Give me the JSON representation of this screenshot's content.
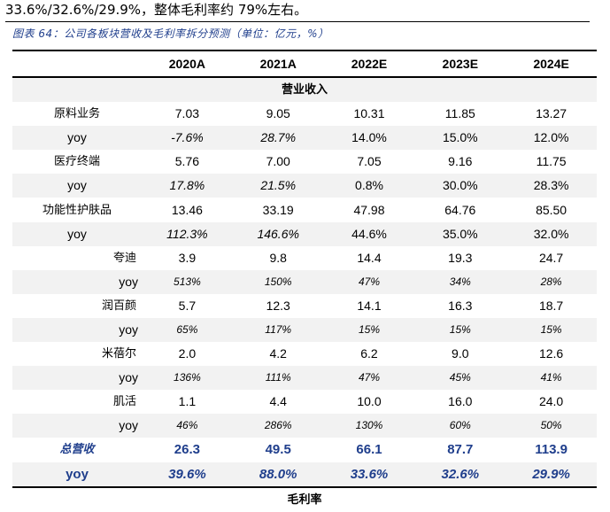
{
  "intro_text": "33.6%/32.6%/29.9%，整体毛利率约 79%左右。",
  "caption": "图表 64：公司各板块营收及毛利率拆分预测（单位：亿元，%）",
  "columns": [
    "",
    "2020A",
    "2021A",
    "2022E",
    "2023E",
    "2024E"
  ],
  "sections": {
    "revenue": "营业收入",
    "gross_margin": "毛利率"
  },
  "rows": [
    {
      "label": "原料业务",
      "values": [
        "7.03",
        "9.05",
        "10.31",
        "11.85",
        "13.27"
      ]
    },
    {
      "label": "yoy",
      "values": [
        "-7.6%",
        "28.7%",
        "14.0%",
        "15.0%",
        "12.0%"
      ]
    },
    {
      "label": "医疗终端",
      "values": [
        "5.76",
        "7.00",
        "7.05",
        "9.16",
        "11.75"
      ]
    },
    {
      "label": "yoy",
      "values": [
        "17.8%",
        "21.5%",
        "0.8%",
        "30.0%",
        "28.3%"
      ]
    },
    {
      "label": "功能性护肤品",
      "values": [
        "13.46",
        "33.19",
        "47.98",
        "64.76",
        "85.50"
      ]
    },
    {
      "label": "yoy",
      "values": [
        "112.3%",
        "146.6%",
        "44.6%",
        "35.0%",
        "32.0%"
      ]
    },
    {
      "label": "夸迪",
      "values": [
        "3.9",
        "9.8",
        "14.4",
        "19.3",
        "24.7"
      ]
    },
    {
      "label": "yoy",
      "values": [
        "513%",
        "150%",
        "47%",
        "34%",
        "28%"
      ]
    },
    {
      "label": "润百颜",
      "values": [
        "5.7",
        "12.3",
        "14.1",
        "16.3",
        "18.7"
      ]
    },
    {
      "label": "yoy",
      "values": [
        "65%",
        "117%",
        "15%",
        "15%",
        "15%"
      ]
    },
    {
      "label": "米蓓尔",
      "values": [
        "2.0",
        "4.2",
        "6.2",
        "9.0",
        "12.6"
      ]
    },
    {
      "label": "yoy",
      "values": [
        "136%",
        "111%",
        "47%",
        "45%",
        "41%"
      ]
    },
    {
      "label": "肌活",
      "values": [
        "1.1",
        "4.4",
        "10.0",
        "16.0",
        "24.0"
      ]
    },
    {
      "label": "yoy",
      "values": [
        "46%",
        "286%",
        "130%",
        "60%",
        "50%"
      ]
    },
    {
      "label": "总营收",
      "values": [
        "26.3",
        "49.5",
        "66.1",
        "87.7",
        "113.9"
      ]
    },
    {
      "label": "yoy",
      "values": [
        "39.6%",
        "88.0%",
        "33.6%",
        "32.6%",
        "29.9%"
      ]
    }
  ],
  "colors": {
    "accent": "#1f3e8c",
    "shade": "#f2f2f2"
  }
}
